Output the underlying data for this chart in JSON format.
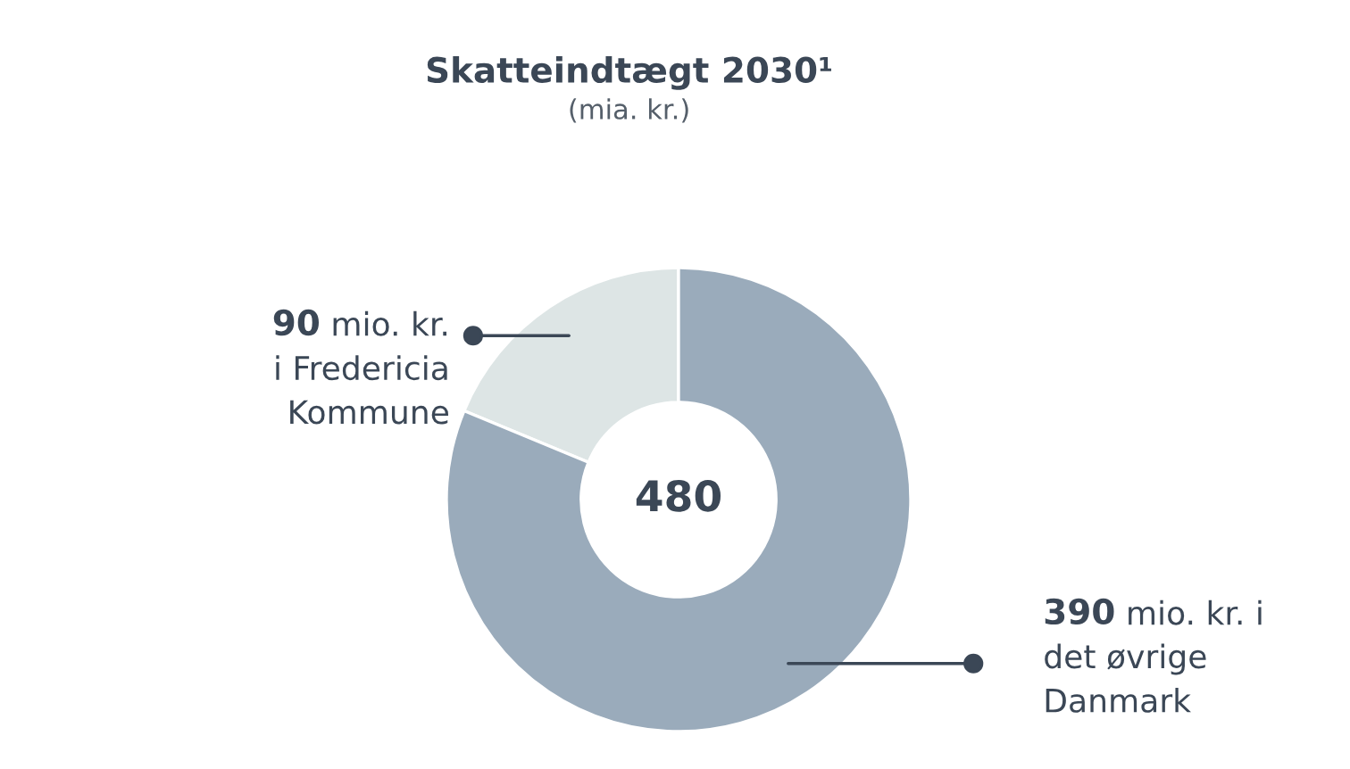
{
  "chart_data": {
    "type": "donut",
    "title": "Skatteindtægt 2030¹",
    "subtitle": "(mia. kr.)",
    "categories": [
      "mio. kr.\ni Fredericia\nKommune",
      "mio. kr. i\ndet øvrige\nDanmark"
    ],
    "values": [
      90,
      390
    ],
    "value_labels": [
      "90",
      "390"
    ],
    "colors": [
      "#dde5e5",
      "#9aabbb"
    ],
    "annotations": [
      "480"
    ],
    "legend": false
  }
}
